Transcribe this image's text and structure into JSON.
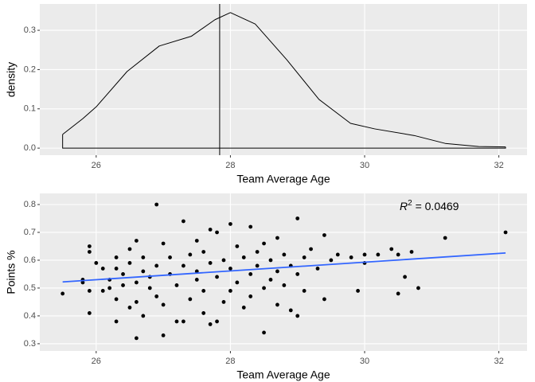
{
  "chart_data": [
    {
      "type": "density",
      "xlabel": "Team Average Age",
      "ylabel": "density",
      "x": [
        25.5,
        25.8,
        26.0,
        26.46,
        26.94,
        27.42,
        27.77,
        28.0,
        28.37,
        28.84,
        29.32,
        29.79,
        30.15,
        30.74,
        31.2,
        31.7,
        32.1
      ],
      "values": [
        0.035,
        0.075,
        0.105,
        0.195,
        0.26,
        0.285,
        0.327,
        0.345,
        0.316,
        0.225,
        0.124,
        0.063,
        0.049,
        0.032,
        0.012,
        0.004,
        0.003
      ],
      "vline": 27.84,
      "color": "#000000",
      "xlim": [
        25.16,
        32.42
      ],
      "xticks": [
        26,
        28,
        30,
        32
      ],
      "ylim": [
        -0.018,
        0.367
      ],
      "yticks": [
        {
          "value": 0,
          "label": "0.0"
        },
        0.1,
        0.2,
        0.3
      ],
      "grid": true
    },
    {
      "type": "scatter",
      "xlabel": "Team Average Age",
      "ylabel": "Points %",
      "x": [
        25.5,
        25.8,
        25.8,
        25.9,
        25.9,
        25.9,
        25.9,
        26.0,
        26.1,
        26.1,
        26.2,
        26.2,
        26.3,
        26.3,
        26.3,
        26.3,
        26.4,
        26.4,
        26.5,
        26.5,
        26.5,
        26.6,
        26.6,
        26.6,
        26.6,
        26.7,
        26.7,
        26.7,
        26.8,
        26.8,
        26.9,
        26.9,
        26.9,
        27.0,
        27.0,
        27.0,
        27.1,
        27.1,
        27.2,
        27.2,
        27.3,
        27.3,
        27.3,
        27.4,
        27.4,
        27.5,
        27.5,
        27.5,
        27.6,
        27.6,
        27.6,
        27.7,
        27.7,
        27.7,
        27.8,
        27.8,
        27.8,
        27.9,
        27.9,
        28.0,
        28.0,
        28.0,
        28.1,
        28.1,
        28.2,
        28.2,
        28.3,
        28.3,
        28.3,
        28.4,
        28.4,
        28.5,
        28.5,
        28.5,
        28.6,
        28.6,
        28.7,
        28.7,
        28.7,
        28.8,
        28.8,
        28.9,
        28.9,
        29.0,
        29.0,
        29.0,
        29.1,
        29.1,
        29.2,
        29.3,
        29.4,
        29.4,
        29.5,
        29.6,
        29.8,
        30.0,
        29.9,
        30.0,
        30.2,
        30.4,
        30.5,
        30.7,
        30.5,
        30.6,
        30.8,
        31.2,
        32.1
      ],
      "values": [
        0.48,
        0.52,
        0.53,
        0.65,
        0.63,
        0.49,
        0.41,
        0.59,
        0.49,
        0.57,
        0.53,
        0.5,
        0.61,
        0.46,
        0.38,
        0.57,
        0.55,
        0.51,
        0.64,
        0.43,
        0.59,
        0.52,
        0.67,
        0.32,
        0.45,
        0.4,
        0.56,
        0.61,
        0.5,
        0.54,
        0.8,
        0.58,
        0.47,
        0.33,
        0.66,
        0.44,
        0.55,
        0.61,
        0.38,
        0.51,
        0.74,
        0.58,
        0.38,
        0.62,
        0.46,
        0.67,
        0.53,
        0.56,
        0.63,
        0.41,
        0.49,
        0.71,
        0.59,
        0.37,
        0.7,
        0.54,
        0.38,
        0.6,
        0.45,
        0.73,
        0.57,
        0.49,
        0.65,
        0.52,
        0.61,
        0.43,
        0.72,
        0.55,
        0.47,
        0.63,
        0.58,
        0.5,
        0.34,
        0.66,
        0.6,
        0.53,
        0.68,
        0.56,
        0.44,
        0.62,
        0.51,
        0.58,
        0.42,
        0.75,
        0.55,
        0.4,
        0.61,
        0.49,
        0.64,
        0.57,
        0.69,
        0.46,
        0.6,
        0.62,
        0.61,
        0.62,
        0.49,
        0.59,
        0.62,
        0.64,
        0.62,
        0.63,
        0.48,
        0.54,
        0.5,
        0.68,
        0.7
      ],
      "color": "#000000",
      "trend": {
        "x": [
          25.5,
          32.1
        ],
        "values": [
          0.522,
          0.626
        ],
        "color": "#3366FF"
      },
      "annotation": [
        "R",
        "2",
        " = 0.0469"
      ],
      "xlim": [
        25.16,
        32.42
      ],
      "xticks": [
        26,
        28,
        30,
        32
      ],
      "ylim": [
        0.274,
        0.84
      ],
      "yticks": [
        0.3,
        0.4,
        0.5,
        0.6,
        0.7,
        0.8
      ],
      "grid": true
    }
  ]
}
